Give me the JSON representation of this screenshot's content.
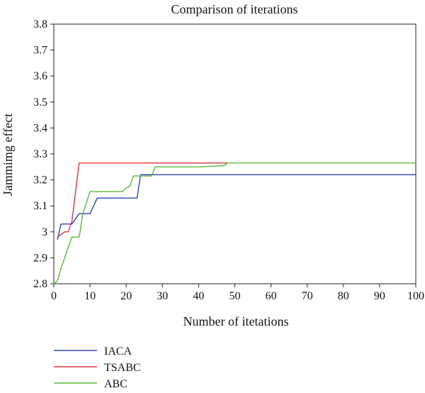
{
  "chart_data": {
    "type": "line",
    "title": "Comparison of iterations",
    "xlabel": "Number of itetations",
    "ylabel": "Jammimg effect",
    "xlim": [
      0,
      100
    ],
    "ylim": [
      2.8,
      3.8
    ],
    "xticks": [
      0,
      10,
      20,
      30,
      40,
      50,
      60,
      70,
      80,
      90,
      100
    ],
    "yticks": [
      2.8,
      2.9,
      3,
      3.1,
      3.2,
      3.3,
      3.4,
      3.5,
      3.6,
      3.7,
      3.8
    ],
    "ytick_labels": [
      "2.8",
      "2.9",
      "3",
      "3.1",
      "3.2",
      "3.3",
      "3.4",
      "3.5",
      "3.6",
      "3.7",
      "3.8"
    ],
    "xtick_labels": [
      "0",
      "10",
      "20",
      "30",
      "40",
      "50",
      "60",
      "70",
      "80",
      "90",
      "100"
    ],
    "grid": false,
    "legend_position": "bottom-left, below plot",
    "series": [
      {
        "name": "IACA",
        "color": "#2b45b3",
        "x": [
          1,
          2,
          5,
          7,
          10,
          12,
          15,
          19,
          23,
          24,
          48,
          100
        ],
        "y": [
          2.97,
          3.03,
          3.03,
          3.07,
          3.07,
          3.13,
          3.13,
          3.13,
          3.13,
          3.22,
          3.22,
          3.22
        ]
      },
      {
        "name": "TSABC",
        "color": "#e0323c",
        "x": [
          1,
          2,
          3,
          4,
          5,
          7,
          10,
          20,
          30,
          48
        ],
        "y": [
          2.98,
          2.99,
          3.0,
          3.0,
          3.04,
          3.265,
          3.265,
          3.265,
          3.265,
          3.265
        ]
      },
      {
        "name": "ABC",
        "color": "#5cb83a",
        "x": [
          0,
          1,
          2,
          5,
          7,
          8,
          10,
          15,
          19,
          20,
          21,
          22,
          27,
          28,
          30,
          40,
          47,
          48,
          60,
          100
        ],
        "y": [
          2.8,
          2.81,
          2.86,
          2.98,
          2.98,
          3.07,
          3.155,
          3.155,
          3.155,
          3.17,
          3.175,
          3.215,
          3.215,
          3.25,
          3.25,
          3.25,
          3.255,
          3.265,
          3.265,
          3.265
        ]
      }
    ]
  }
}
